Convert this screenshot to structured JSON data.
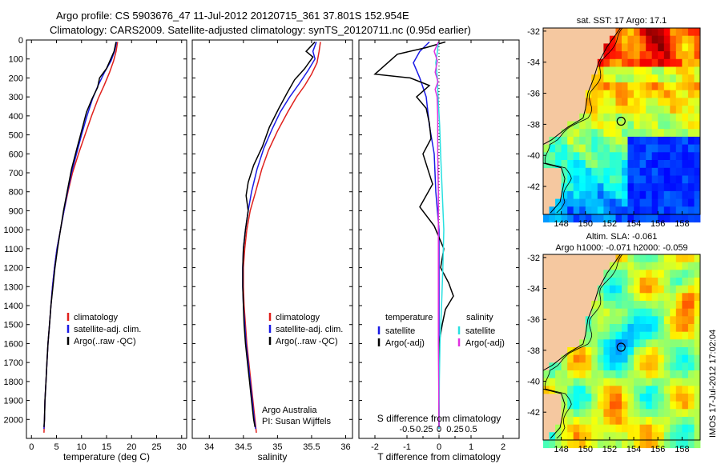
{
  "title": {
    "line1": "Argo profile: CS 5903676_47 11-Jul-2012 20120715_361 37.801S 152.954E",
    "line2": "Climatology: CARS2009. Satellite-adjusted climatology: synTS_20120711.nc (0.95d earlier)"
  },
  "watermark": "IMOS 17-Jul-2012 17:02:04",
  "colors": {
    "climatology": "#e0201c",
    "satellite": "#1a1ae6",
    "argo": "#000000",
    "sal_satellite": "#29e0e0",
    "sal_argo": "#e030e0",
    "land": "#f5c8a0",
    "map_frame": "#000000"
  },
  "chart_data": [
    {
      "type": "line",
      "id": "temperature",
      "xlabel": "temperature (deg C)",
      "ylabel": "",
      "xlim": [
        -1,
        31
      ],
      "ylim": [
        2100,
        0
      ],
      "xticks": [
        0,
        5,
        10,
        15,
        20,
        25,
        30
      ],
      "yticks": [
        0,
        100,
        200,
        300,
        400,
        500,
        600,
        700,
        800,
        900,
        1000,
        1100,
        1200,
        1300,
        1400,
        1500,
        1600,
        1700,
        1800,
        1900,
        2000
      ],
      "legend": [
        "climatology",
        "satellite-adj. clim.",
        "Argo(..raw -QC)"
      ],
      "series": [
        {
          "name": "climatology",
          "color_key": "climatology",
          "points": [
            [
              17.2,
              10
            ],
            [
              16.9,
              60
            ],
            [
              16.4,
              110
            ],
            [
              15.6,
              170
            ],
            [
              14.5,
              240
            ],
            [
              13.3,
              310
            ],
            [
              12.0,
              400
            ],
            [
              10.7,
              500
            ],
            [
              9.4,
              600
            ],
            [
              8.2,
              700
            ],
            [
              7.3,
              800
            ],
            [
              6.5,
              900
            ],
            [
              5.8,
              1000
            ],
            [
              5.1,
              1100
            ],
            [
              4.6,
              1200
            ],
            [
              4.2,
              1300
            ],
            [
              3.9,
              1400
            ],
            [
              3.6,
              1500
            ],
            [
              3.3,
              1600
            ],
            [
              3.1,
              1700
            ],
            [
              2.9,
              1800
            ],
            [
              2.7,
              1900
            ],
            [
              2.6,
              2000
            ],
            [
              2.5,
              2070
            ]
          ]
        },
        {
          "name": "satellite-adj. clim.",
          "color_key": "satellite",
          "points": [
            [
              17.0,
              10
            ],
            [
              16.6,
              60
            ],
            [
              15.9,
              110
            ],
            [
              14.6,
              170
            ],
            [
              13.3,
              240
            ],
            [
              12.2,
              310
            ],
            [
              11.1,
              400
            ],
            [
              10.0,
              500
            ],
            [
              9.0,
              600
            ],
            [
              8.0,
              700
            ],
            [
              7.2,
              800
            ],
            [
              6.5,
              900
            ],
            [
              5.8,
              1000
            ],
            [
              5.1,
              1100
            ],
            [
              4.6,
              1200
            ],
            [
              4.2,
              1300
            ],
            [
              3.9,
              1400
            ],
            [
              3.6,
              1500
            ],
            [
              3.3,
              1600
            ],
            [
              3.1,
              1700
            ],
            [
              2.9,
              1800
            ],
            [
              2.7,
              1900
            ],
            [
              2.6,
              2000
            ],
            [
              2.5,
              2050
            ]
          ]
        },
        {
          "name": "Argo(..raw -QC)",
          "color_key": "argo",
          "points": [
            [
              16.9,
              10
            ],
            [
              16.5,
              60
            ],
            [
              16.0,
              90
            ],
            [
              15.0,
              150
            ],
            [
              13.6,
              200
            ],
            [
              13.2,
              250
            ],
            [
              12.1,
              310
            ],
            [
              11.0,
              380
            ],
            [
              10.0,
              480
            ],
            [
              9.0,
              580
            ],
            [
              8.0,
              680
            ],
            [
              7.2,
              790
            ],
            [
              6.4,
              900
            ],
            [
              5.8,
              1000
            ],
            [
              5.2,
              1100
            ],
            [
              4.7,
              1200
            ],
            [
              4.3,
              1300
            ],
            [
              3.9,
              1400
            ],
            [
              3.6,
              1500
            ],
            [
              3.3,
              1600
            ],
            [
              3.1,
              1700
            ],
            [
              2.9,
              1800
            ],
            [
              2.7,
              1900
            ],
            [
              2.6,
              2000
            ],
            [
              2.5,
              2040
            ]
          ]
        }
      ]
    },
    {
      "type": "line",
      "id": "salinity",
      "xlabel": "salinity",
      "ylabel": "",
      "xlim": [
        33.75,
        36.1
      ],
      "ylim": [
        2100,
        0
      ],
      "xticks": [
        34,
        34.5,
        35,
        35.5,
        36
      ],
      "legend": [
        "climatology",
        "satellite-adj. clim.",
        "Argo(..raw -QC)"
      ],
      "annotations": [
        "Argo Australia",
        "PI: Susan Wijffels"
      ],
      "series": [
        {
          "name": "climatology",
          "color_key": "climatology",
          "points": [
            [
              35.63,
              10
            ],
            [
              35.61,
              60
            ],
            [
              35.58,
              120
            ],
            [
              35.5,
              180
            ],
            [
              35.4,
              240
            ],
            [
              35.28,
              300
            ],
            [
              35.15,
              380
            ],
            [
              35.0,
              480
            ],
            [
              34.87,
              580
            ],
            [
              34.77,
              680
            ],
            [
              34.68,
              800
            ],
            [
              34.6,
              900
            ],
            [
              34.55,
              1000
            ],
            [
              34.52,
              1100
            ],
            [
              34.5,
              1200
            ],
            [
              34.5,
              1300
            ],
            [
              34.51,
              1400
            ],
            [
              34.53,
              1500
            ],
            [
              34.55,
              1600
            ],
            [
              34.58,
              1700
            ],
            [
              34.61,
              1800
            ],
            [
              34.64,
              1900
            ],
            [
              34.67,
              2000
            ],
            [
              34.69,
              2070
            ]
          ]
        },
        {
          "name": "satellite-adj. clim.",
          "color_key": "satellite",
          "points": [
            [
              35.57,
              10
            ],
            [
              35.52,
              60
            ],
            [
              35.55,
              100
            ],
            [
              35.45,
              160
            ],
            [
              35.32,
              230
            ],
            [
              35.18,
              300
            ],
            [
              35.04,
              380
            ],
            [
              34.92,
              470
            ],
            [
              34.8,
              570
            ],
            [
              34.7,
              680
            ],
            [
              34.62,
              800
            ],
            [
              34.57,
              900
            ],
            [
              34.53,
              1000
            ],
            [
              34.5,
              1100
            ],
            [
              34.49,
              1200
            ],
            [
              34.49,
              1300
            ],
            [
              34.5,
              1400
            ],
            [
              34.52,
              1500
            ],
            [
              34.54,
              1600
            ],
            [
              34.57,
              1700
            ],
            [
              34.6,
              1800
            ],
            [
              34.63,
              1900
            ],
            [
              34.66,
              2000
            ],
            [
              34.68,
              2050
            ]
          ]
        },
        {
          "name": "Argo(..raw -QC)",
          "color_key": "argo",
          "points": [
            [
              35.55,
              10
            ],
            [
              35.42,
              60
            ],
            [
              35.52,
              90
            ],
            [
              35.4,
              150
            ],
            [
              35.25,
              210
            ],
            [
              35.14,
              280
            ],
            [
              35.02,
              360
            ],
            [
              34.88,
              460
            ],
            [
              34.78,
              560
            ],
            [
              34.65,
              660
            ],
            [
              34.57,
              750
            ],
            [
              34.54,
              820
            ],
            [
              34.57,
              900
            ],
            [
              34.53,
              1000
            ],
            [
              34.5,
              1100
            ],
            [
              34.49,
              1200
            ],
            [
              34.49,
              1300
            ],
            [
              34.5,
              1400
            ],
            [
              34.51,
              1500
            ],
            [
              34.53,
              1600
            ],
            [
              34.56,
              1700
            ],
            [
              34.59,
              1800
            ],
            [
              34.62,
              1900
            ],
            [
              34.65,
              2000
            ],
            [
              34.67,
              2040
            ]
          ]
        }
      ]
    },
    {
      "type": "line",
      "id": "difference",
      "xlabel": "T difference from climatology",
      "top_xlabel": "S difference from climatology",
      "xlim": [
        -2.5,
        2.5
      ],
      "ylim": [
        2100,
        0
      ],
      "xticks": [
        -2,
        -1,
        0,
        1,
        2
      ],
      "top_xticks": [
        -0.5,
        -0.25,
        0,
        0.25,
        0.5
      ],
      "top_xtick_labels": [
        "-0.5",
        "-0.25",
        "0",
        "0.25",
        "0.5"
      ],
      "legend": {
        "temperature_header": "temperature",
        "salinity_header": "salinity",
        "items": [
          "satellite",
          "Argo(-adj)",
          "satellite",
          "Argo(-adj)"
        ]
      },
      "series": [
        {
          "name": "temperature satellite",
          "color_key": "satellite",
          "points": [
            [
              -0.3,
              10
            ],
            [
              -0.6,
              60
            ],
            [
              -0.8,
              120
            ],
            [
              -0.6,
              200
            ],
            [
              -0.4,
              300
            ],
            [
              -0.3,
              450
            ],
            [
              -0.15,
              600
            ],
            [
              -0.1,
              800
            ],
            [
              0,
              1000
            ],
            [
              0,
              1300
            ],
            [
              0,
              1600
            ],
            [
              0,
              2050
            ]
          ]
        },
        {
          "name": "temperature Argo(-adj)",
          "color_key": "argo",
          "points": [
            [
              0.2,
              10
            ],
            [
              -0.4,
              40
            ],
            [
              -1.3,
              75
            ],
            [
              -2.0,
              180
            ],
            [
              -0.9,
              200
            ],
            [
              -0.3,
              240
            ],
            [
              -0.7,
              300
            ],
            [
              -0.4,
              360
            ],
            [
              -0.3,
              440
            ],
            [
              -0.25,
              520
            ],
            [
              -0.5,
              600
            ],
            [
              -0.35,
              680
            ],
            [
              -0.2,
              760
            ],
            [
              -0.6,
              880
            ],
            [
              -0.15,
              980
            ],
            [
              0.15,
              1100
            ],
            [
              0.05,
              1200
            ],
            [
              0.3,
              1280
            ],
            [
              0.45,
              1350
            ],
            [
              0.2,
              1420
            ],
            [
              0.1,
              1500
            ],
            [
              0,
              1600
            ],
            [
              0,
              2040
            ]
          ]
        },
        {
          "name": "salinity satellite",
          "color_key": "sal_satellite",
          "points": [
            [
              -0.02,
              10
            ],
            [
              -0.05,
              60
            ],
            [
              -0.1,
              120
            ],
            [
              -0.05,
              200
            ],
            [
              -0.03,
              300
            ],
            [
              0.02,
              450
            ],
            [
              0.05,
              600
            ],
            [
              0.1,
              800
            ],
            [
              0.15,
              1000
            ],
            [
              0.12,
              1200
            ],
            [
              0.08,
              1400
            ],
            [
              0.03,
              1600
            ],
            [
              0.01,
              1800
            ],
            [
              0,
              2050
            ]
          ]
        },
        {
          "name": "salinity Argo(-adj)",
          "color_key": "sal_argo",
          "points": [
            [
              -0.02,
              10
            ],
            [
              -0.15,
              60
            ],
            [
              -0.05,
              110
            ],
            [
              -0.12,
              170
            ],
            [
              -0.03,
              220
            ],
            [
              -0.12,
              260
            ],
            [
              -0.06,
              300
            ],
            [
              -0.04,
              400
            ],
            [
              -0.04,
              600
            ],
            [
              -0.02,
              800
            ],
            [
              -0.02,
              1000
            ],
            [
              -0.02,
              1200
            ],
            [
              -0.02,
              1400
            ],
            [
              -0.02,
              1600
            ],
            [
              -0.01,
              1800
            ],
            [
              0,
              2040
            ]
          ]
        }
      ]
    },
    {
      "type": "heatmap",
      "id": "sst_map",
      "title": "sat. SST: 17 Argo: 17.1",
      "xlim": [
        146.5,
        159.5
      ],
      "ylim": [
        -43.8,
        -31.8
      ],
      "xticks": [
        148,
        150,
        152,
        154,
        156,
        158
      ],
      "yticks": [
        -32,
        -34,
        -36,
        -38,
        -40,
        -42
      ],
      "profile_location": {
        "lon": 152.954,
        "lat": -37.801
      }
    },
    {
      "type": "heatmap",
      "id": "sla_map",
      "title": "Altim. SLA: -0.061",
      "subtitle": "Argo h1000: -0.071 h2000: -0.059",
      "xlim": [
        146.5,
        159.5
      ],
      "ylim": [
        -43.8,
        -31.8
      ],
      "xticks": [
        148,
        150,
        152,
        154,
        156,
        158
      ],
      "yticks": [
        -32,
        -34,
        -36,
        -38,
        -40,
        -42
      ],
      "profile_location": {
        "lon": 152.954,
        "lat": -37.801
      }
    }
  ]
}
